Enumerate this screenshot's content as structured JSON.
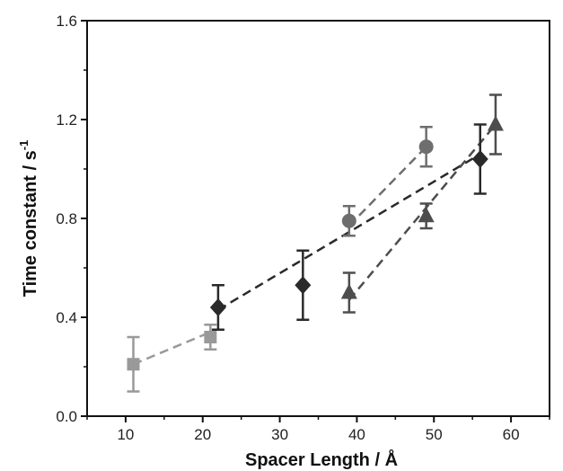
{
  "chart_data": {
    "type": "scatter",
    "title": "",
    "xlabel": "Spacer Length / Å",
    "ylabel": "Time constant / s",
    "ylabel_superscript": "-1",
    "xlim": [
      5,
      65
    ],
    "ylim": [
      0,
      1.6
    ],
    "xticks": [
      10,
      20,
      30,
      40,
      50,
      60
    ],
    "yticks": [
      0.0,
      0.4,
      0.8,
      1.2,
      1.6
    ],
    "xtick_labels": [
      "10",
      "20",
      "30",
      "40",
      "50",
      "60"
    ],
    "ytick_labels": [
      "0.0",
      "0.4",
      "0.8",
      "1.2",
      "1.6"
    ],
    "grid": false,
    "series": [
      {
        "marker": "square",
        "color": "#999999",
        "points": [
          {
            "x": 11,
            "y": 0.21,
            "err": 0.11
          },
          {
            "x": 21,
            "y": 0.32,
            "err": 0.05
          }
        ],
        "fit": [
          [
            11,
            0.21
          ],
          [
            21,
            0.34
          ]
        ]
      },
      {
        "marker": "circle",
        "color": "#6e6e6e",
        "points": [
          {
            "x": 39,
            "y": 0.79,
            "err": 0.06
          },
          {
            "x": 49,
            "y": 1.09,
            "err": 0.08
          }
        ],
        "fit": [
          [
            39,
            0.77
          ],
          [
            49,
            1.09
          ]
        ]
      },
      {
        "marker": "diamond",
        "color": "#2a2a2a",
        "points": [
          {
            "x": 22,
            "y": 0.44,
            "err": 0.09
          },
          {
            "x": 33,
            "y": 0.53,
            "err": 0.14
          },
          {
            "x": 56,
            "y": 1.04,
            "err": 0.14
          }
        ],
        "fit": [
          [
            22,
            0.43
          ],
          [
            56,
            1.06
          ]
        ]
      },
      {
        "marker": "triangle",
        "color": "#4d4d4d",
        "points": [
          {
            "x": 39,
            "y": 0.5,
            "err": 0.08
          },
          {
            "x": 49,
            "y": 0.81,
            "err": 0.05
          },
          {
            "x": 58,
            "y": 1.18,
            "err": 0.12
          }
        ],
        "fit": [
          [
            39,
            0.47
          ],
          [
            58,
            1.18
          ]
        ]
      }
    ]
  }
}
